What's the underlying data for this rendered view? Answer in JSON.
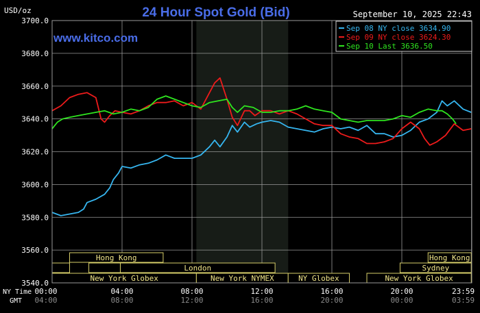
{
  "chart_data": {
    "type": "line",
    "title": "24 Hour Spot Gold (Bid)",
    "brand": "www.kitco.com",
    "date_time": "September 10, 2025 22:43",
    "y_unit": "USD/oz",
    "ylim": [
      3540,
      3700
    ],
    "yticks": [
      "3540.0",
      "3560.0",
      "3580.0",
      "3600.0",
      "3620.0",
      "3640.0",
      "3660.0",
      "3680.0",
      "3700.0"
    ],
    "xlim": [
      0,
      24
    ],
    "xticks_ny": [
      "00:00",
      "04:00",
      "08:00",
      "12:00",
      "16:00",
      "20:00",
      "23:59"
    ],
    "xticks_gmt": [
      "04:00",
      "08:00",
      "12:00",
      "16:00",
      "20:00",
      "00:00",
      "03:59"
    ],
    "x_axis_label_ny": "NY Time",
    "x_axis_label_gmt": "GMT",
    "grid": true,
    "legend_position": "top-right",
    "highlight_region": [
      8.25,
      13.5
    ],
    "series": [
      {
        "name": "Sep 08 NY close 3634.90",
        "color": "#36b6f0",
        "x": [
          0,
          0.5,
          1,
          1.5,
          1.8,
          2,
          2.5,
          3,
          3.3,
          3.5,
          3.8,
          4,
          4.5,
          5,
          5.5,
          6,
          6.5,
          7,
          7.5,
          8,
          8.5,
          9,
          9.3,
          9.6,
          10,
          10.3,
          10.6,
          11,
          11.3,
          11.7,
          12,
          12.5,
          13,
          13.5,
          14,
          14.5,
          15,
          15.5,
          16,
          16.5,
          17,
          17.5,
          18,
          18.5,
          19,
          19.5,
          20,
          20.5,
          21,
          21.5,
          22,
          22.3,
          22.6,
          23,
          23.5,
          23.97
        ],
        "values": [
          3583,
          3581,
          3582,
          3583,
          3585,
          3589,
          3591,
          3594,
          3598,
          3603,
          3607,
          3611,
          3610,
          3612,
          3613,
          3615,
          3618,
          3616,
          3616,
          3616,
          3618,
          3623,
          3627,
          3623,
          3629,
          3636,
          3632,
          3638,
          3635,
          3637,
          3638,
          3639,
          3638,
          3635,
          3634,
          3633,
          3632,
          3634,
          3635,
          3634,
          3635,
          3633,
          3636,
          3631,
          3631,
          3629,
          3630,
          3633,
          3638,
          3640,
          3644,
          3651,
          3648,
          3651,
          3646,
          3644
        ]
      },
      {
        "name": "Sep 09 NY close 3624.30",
        "color": "#ee1b1b",
        "x": [
          0,
          0.5,
          1,
          1.5,
          2,
          2.5,
          2.8,
          3,
          3.3,
          3.6,
          4,
          4.5,
          5,
          5.5,
          6,
          6.5,
          7,
          7.5,
          8,
          8.5,
          9,
          9.3,
          9.6,
          10,
          10.3,
          10.6,
          11,
          11.3,
          11.6,
          12,
          12.5,
          13,
          13.5,
          14,
          14.5,
          15,
          15.5,
          16,
          16.5,
          17,
          17.5,
          18,
          18.5,
          19,
          19.5,
          20,
          20.5,
          21,
          21.3,
          21.6,
          22,
          22.5,
          23,
          23.5,
          23.97
        ],
        "values": [
          3645,
          3648,
          3653,
          3655,
          3656,
          3653,
          3640,
          3638,
          3642,
          3645,
          3644,
          3643,
          3645,
          3648,
          3650,
          3650,
          3651,
          3648,
          3650,
          3646,
          3656,
          3662,
          3665,
          3652,
          3641,
          3636,
          3645,
          3645,
          3642,
          3645,
          3645,
          3643,
          3645,
          3643,
          3640,
          3637,
          3636,
          3636,
          3631,
          3629,
          3628,
          3625,
          3625,
          3626,
          3628,
          3634,
          3638,
          3634,
          3628,
          3624,
          3626,
          3630,
          3637,
          3633,
          3634
        ]
      },
      {
        "name": "Sep 10 Last 3636.50",
        "color": "#2fe61f",
        "x": [
          0,
          0.3,
          0.6,
          1,
          1.5,
          2,
          2.5,
          3,
          3.5,
          4,
          4.5,
          5,
          5.5,
          6,
          6.5,
          7,
          7.5,
          8,
          8.5,
          9,
          9.5,
          10,
          10.3,
          10.6,
          11,
          11.5,
          12,
          12.5,
          13,
          13.5,
          14,
          14.5,
          15,
          15.5,
          16,
          16.5,
          17,
          17.5,
          18,
          18.5,
          19,
          19.5,
          20,
          20.5,
          21,
          21.5,
          22,
          22.3,
          22.6,
          22.9,
          23.1
        ],
        "values": [
          3634,
          3638,
          3640,
          3641,
          3642,
          3643,
          3644,
          3645,
          3643,
          3644,
          3646,
          3645,
          3647,
          3652,
          3654,
          3652,
          3650,
          3648,
          3647,
          3650,
          3651,
          3652,
          3647,
          3644,
          3648,
          3647,
          3644,
          3644,
          3645,
          3645,
          3646,
          3648,
          3646,
          3645,
          3644,
          3640,
          3639,
          3638,
          3639,
          3639,
          3639,
          3640,
          3642,
          3641,
          3644,
          3646,
          3645,
          3645,
          3643,
          3640,
          3637
        ]
      }
    ],
    "sessions": [
      {
        "label": "Hong Kong",
        "start": 1.0,
        "end": 6.35,
        "row": 0
      },
      {
        "label": "Hong Kong",
        "start": 21.5,
        "end": 23.97,
        "row": 0
      },
      {
        "label": "",
        "start": 0.0,
        "end": 1.0,
        "row": 1
      },
      {
        "label": "London",
        "start": 3.9,
        "end": 12.75,
        "row": 1
      },
      {
        "label": "",
        "start": 2.1,
        "end": 3.9,
        "row": 1
      },
      {
        "label": "Sydney",
        "start": 19.9,
        "end": 23.97,
        "row": 1
      },
      {
        "label": "New York Globex",
        "start": 0.0,
        "end": 8.25,
        "row": 2
      },
      {
        "label": "New York NYMEX",
        "start": 8.25,
        "end": 13.5,
        "row": 2
      },
      {
        "label": "NY Globex",
        "start": 13.5,
        "end": 17.0,
        "row": 2
      },
      {
        "label": "New York Globex",
        "start": 18.0,
        "end": 23.97,
        "row": 2
      }
    ],
    "colors": {
      "background": "#000000",
      "plot_background": "#000000",
      "highlight": "#171c17",
      "grid": "#9a9a9a",
      "axis_text": "#ffffff",
      "title": "#4a6de8",
      "session_border": "#d8cf6a",
      "session_text": "#f2e68a",
      "gmt_text": "#8c8c8c"
    }
  }
}
